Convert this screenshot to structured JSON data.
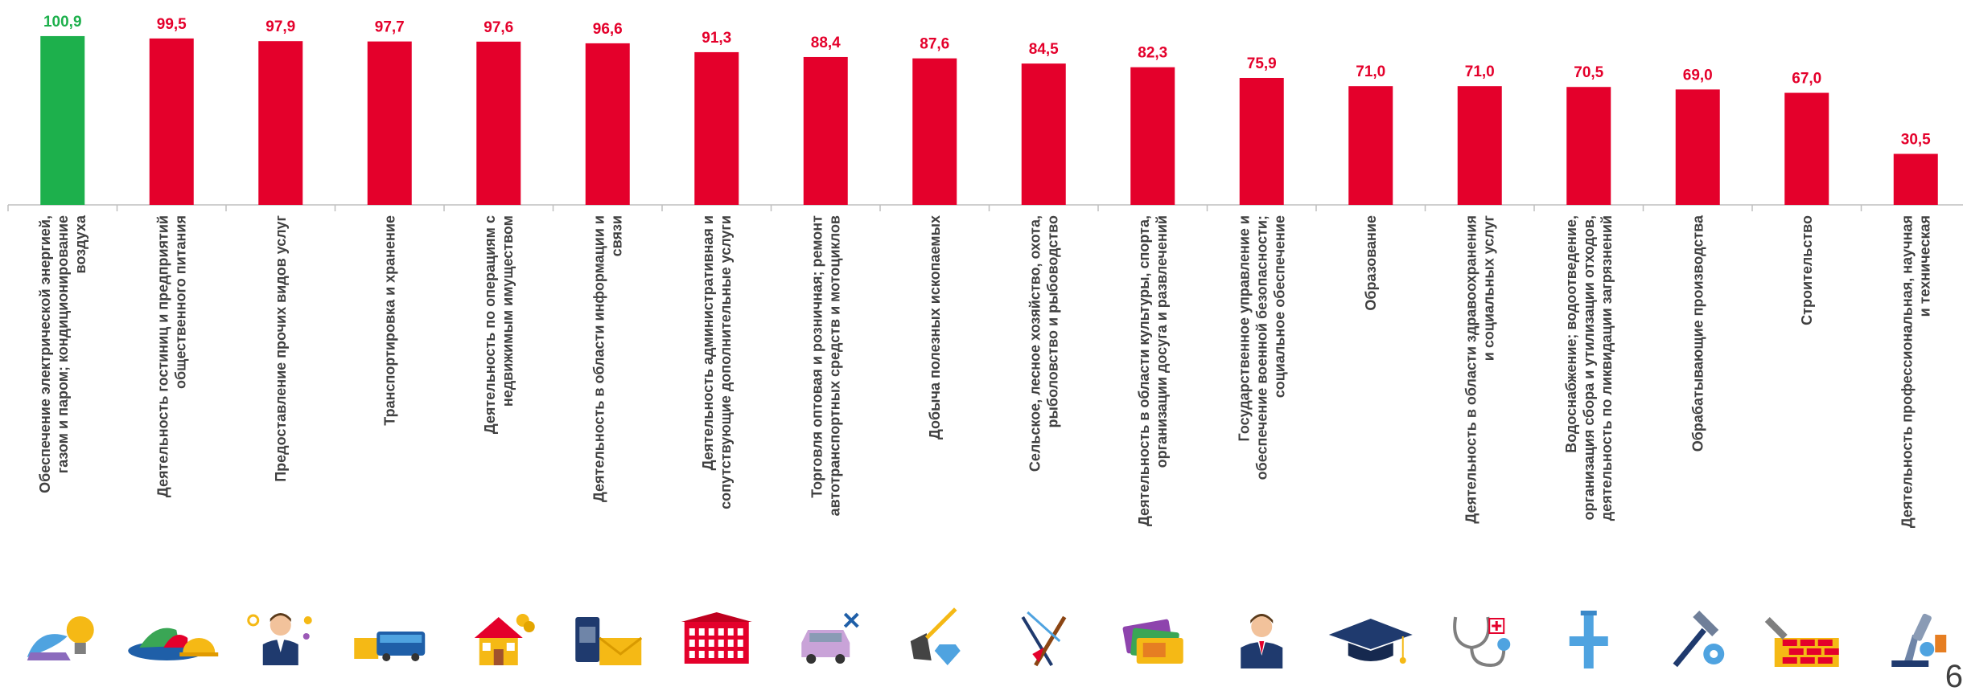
{
  "chart_data": {
    "type": "bar",
    "ylim": [
      0,
      110
    ],
    "colors": {
      "highlight": "#1db04c",
      "default": "#e4002b",
      "label_text": "#404040",
      "axis": "#bfbfbf"
    },
    "categories": [
      "Обеспечение электрической энергией, газом и паром; кондиционирование воздуха",
      "Деятельность гостиниц и предприятий общественного питания",
      "Предоставление прочих видов услуг",
      "Транспортировка и хранение",
      "Деятельность по операциям с недвижимым имуществом",
      "Деятельность в области информации и связи",
      "Деятельность административная и сопутствующие дополнительные услуги",
      "Торговля оптовая и розничная; ремонт автотранспортных средств и мотоциклов",
      "Добыча полезных ископаемых",
      "Сельское, лесное хозяйство, охота, рыболовство и рыбоводство",
      "Деятельность в области культуры, спорта, организации досуга и развлечений",
      "Государственное управление и обеспечение военной безопасности; социальное обеспечение",
      "Образование",
      "Деятельность в области здравоохранения и социальных услуг",
      "Водоснабжение; водоотведение, организация сбора и утилизации отходов, деятельность по ликвидации загрязнений",
      "Обрабатывающие производства",
      "Строительство",
      "Деятельность профессиональная, научная и техническая"
    ],
    "label_lines": [
      [
        "Обеспечение электрической энергией,",
        "газом и паром; кондиционирование",
        "воздуха"
      ],
      [
        "Деятельность гостиниц и предприятий",
        "общественного питания"
      ],
      [
        "Предоставление прочих видов услуг"
      ],
      [
        "Транспортировка и хранение"
      ],
      [
        "Деятельность по операциям с",
        "недвижимым имуществом"
      ],
      [
        "Деятельность в области информации и",
        "связи"
      ],
      [
        "Деятельность административная и",
        "сопутствующие дополнительные услуги"
      ],
      [
        "Торговля оптовая и розничная; ремонт",
        "автотранспортных средств и мотоциклов"
      ],
      [
        "Добыча полезных ископаемых"
      ],
      [
        "Сельское, лесное хозяйство, охота,",
        "рыболовство и рыбоводство"
      ],
      [
        "Деятельность в области культуры, спорта,",
        "организации досуга и развлечений"
      ],
      [
        "Государственное управление и",
        "обеспечение военной безопасности;",
        "социальное обеспечение"
      ],
      [
        "Образование"
      ],
      [
        "Деятельность в области здравоохранения",
        "и социальных услуг"
      ],
      [
        "Водоснабжение; водоотведение,",
        "организация сбора и утилизации отходов,",
        "деятельность по ликвидации загрязнений"
      ],
      [
        "Обрабатывающие производства"
      ],
      [
        "Строительство"
      ],
      [
        "Деятельность профессиональная, научная",
        "и техническая"
      ]
    ],
    "values": [
      100.9,
      99.5,
      97.9,
      97.7,
      97.6,
      96.6,
      91.3,
      88.4,
      87.6,
      84.5,
      82.3,
      75.9,
      71.0,
      71.0,
      70.5,
      69.0,
      67.0,
      30.5
    ],
    "value_labels": [
      "100,9",
      "99,5",
      "97,9",
      "97,7",
      "97,6",
      "96,6",
      "91,3",
      "88,4",
      "87,6",
      "84,5",
      "82,3",
      "75,9",
      "71,0",
      "71,0",
      "70,5",
      "69,0",
      "67,0",
      "30,5"
    ],
    "highlight_index": 0,
    "icons": [
      "lightbulb-icon",
      "food-platter-icon",
      "service-worker-icon",
      "bus-icon",
      "house-icon",
      "phone-mail-icon",
      "office-building-icon",
      "car-repair-icon",
      "shovel-gem-icon",
      "fishing-tools-icon",
      "tickets-icon",
      "official-person-icon",
      "graduation-cap-icon",
      "stethoscope-icon",
      "water-pipe-icon",
      "hammer-gear-icon",
      "brick-wall-icon",
      "microscope-icon"
    ]
  },
  "page_number": "6"
}
